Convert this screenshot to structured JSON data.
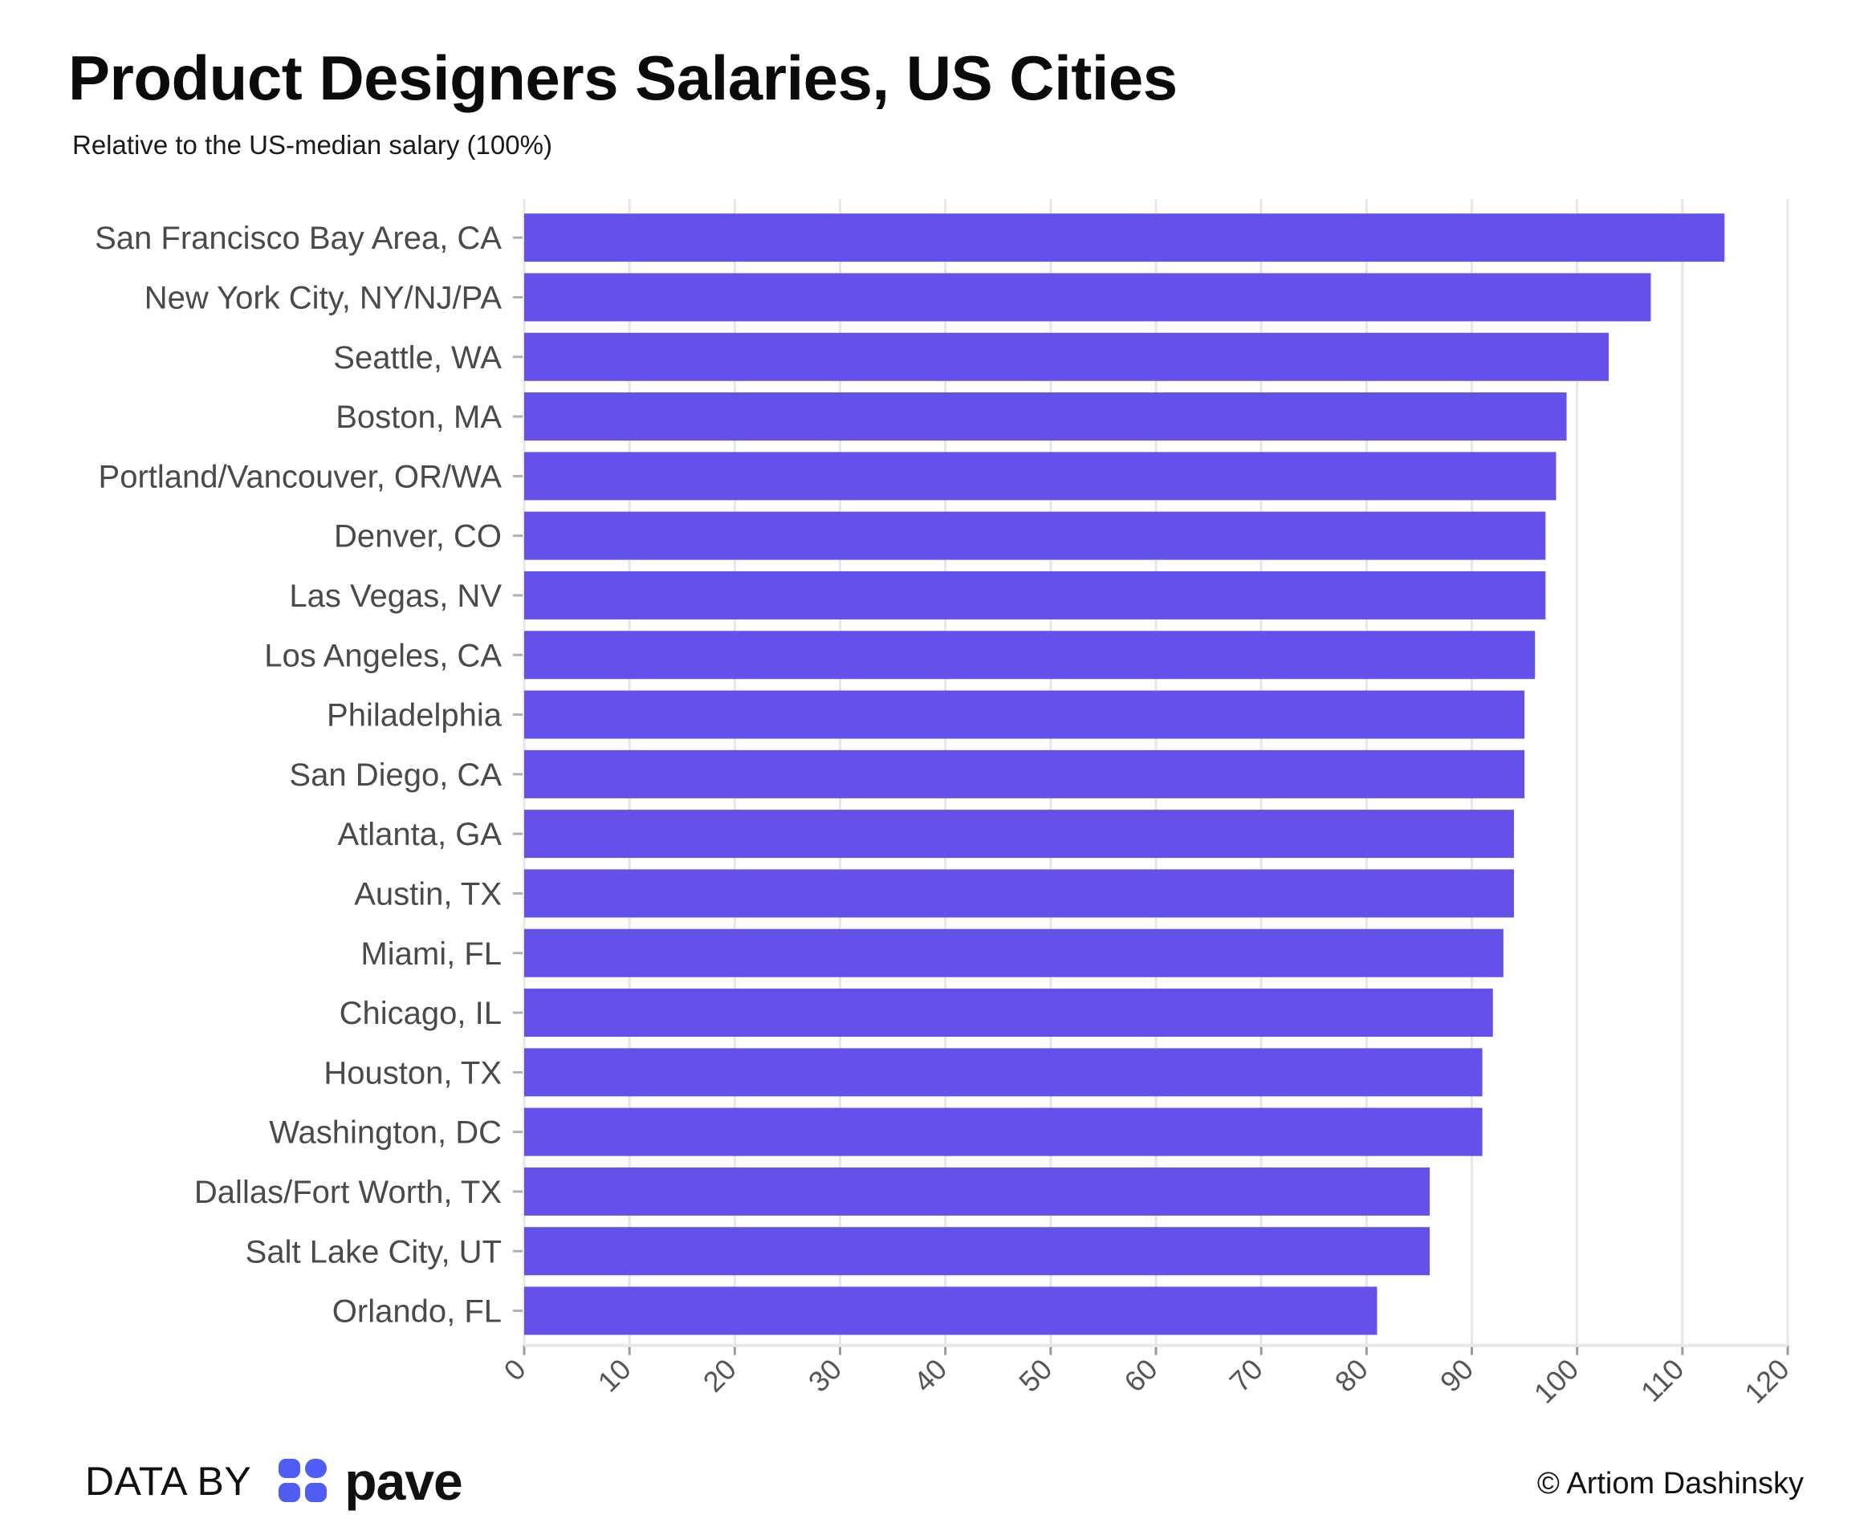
{
  "header": {
    "title": "Product Designers Salaries, US Cities",
    "subtitle": "Relative to the US-median salary (100%)"
  },
  "chart_data": {
    "type": "bar",
    "orientation": "horizontal",
    "title": "Product Designers Salaries, US Cities",
    "subtitle": "Relative to the US-median salary (100%)",
    "xlabel": "",
    "ylabel": "",
    "categories": [
      "San Francisco Bay Area, CA",
      "New York City, NY/NJ/PA",
      "Seattle, WA",
      "Boston, MA",
      "Portland/Vancouver, OR/WA",
      "Denver, CO",
      "Las Vegas, NV",
      "Los Angeles, CA",
      "Philadelphia",
      "San Diego, CA",
      "Atlanta, GA",
      "Austin, TX",
      "Miami, FL",
      "Chicago, IL",
      "Houston, TX",
      "Washington, DC",
      "Dallas/Fort Worth, TX",
      "Salt Lake City, UT",
      "Orlando, FL"
    ],
    "values": [
      114,
      107,
      103,
      99,
      98,
      97,
      97,
      96,
      95,
      95,
      94,
      94,
      93,
      92,
      91,
      91,
      86,
      86,
      81
    ],
    "xlim": [
      0,
      120
    ],
    "xticks": [
      "0",
      "10",
      "20",
      "30",
      "40",
      "50",
      "60",
      "70",
      "80",
      "90",
      "100",
      "110",
      "120"
    ],
    "grid": true,
    "legend": "none",
    "bar_color": "#6451ec"
  },
  "footer": {
    "data_by": "DATA BY",
    "brand": "pave",
    "credit": "© Artiom Dashinsky"
  },
  "colors": {
    "bar": "#6451ec",
    "brand": "#4f5df4",
    "grid": "#e6e6ee"
  },
  "icons": {
    "brand_mark": "pave-logo-icon"
  }
}
